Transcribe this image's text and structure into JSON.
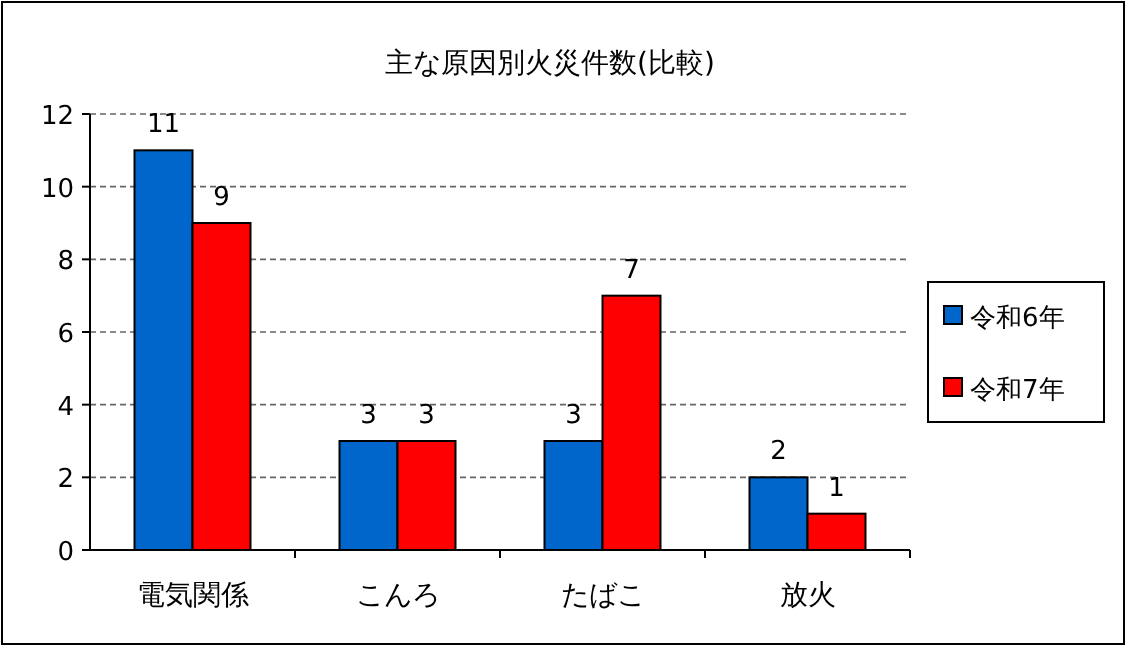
{
  "chart_data": {
    "type": "bar",
    "title": "主な原因別火災件数(比較)",
    "categories": [
      "電気関係",
      "こんろ",
      "たばこ",
      "放火"
    ],
    "series": [
      {
        "name": "令和6年",
        "color": "#0066cc",
        "values": [
          11,
          3,
          3,
          2
        ]
      },
      {
        "name": "令和7年",
        "color": "#ff0000",
        "values": [
          9,
          3,
          7,
          1
        ]
      }
    ],
    "ylim": [
      0,
      12
    ],
    "yticks": [
      0,
      2,
      4,
      6,
      8,
      10,
      12
    ],
    "grid": "y",
    "legend": "right",
    "data_labels": true
  }
}
